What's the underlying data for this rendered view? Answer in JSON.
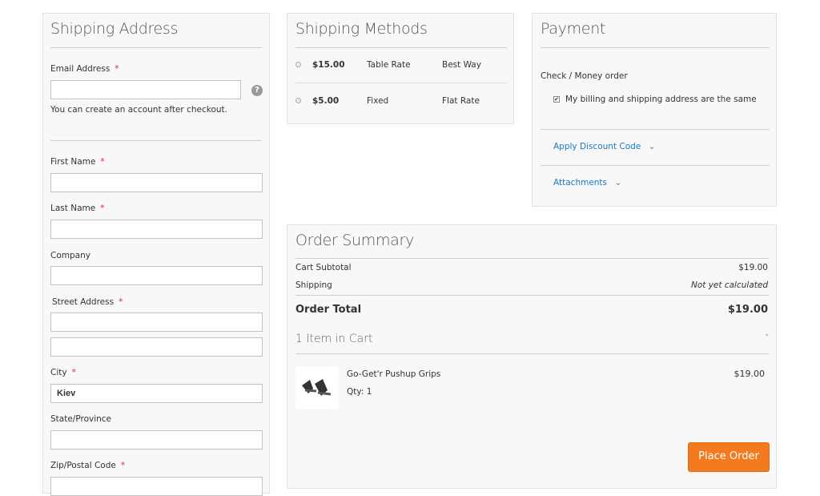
{
  "shipping_address": {
    "title": "Shipping Address",
    "email_label": "Email Address",
    "email_value": "",
    "email_note": "You can create an account after checkout.",
    "first_name_label": "First Name",
    "first_name_value": "",
    "last_name_label": "Last Name",
    "last_name_value": "",
    "company_label": "Company",
    "company_value": "",
    "street_label": "Street Address",
    "street1_value": "",
    "street2_value": "",
    "city_label": "City",
    "city_value": "Kiev",
    "state_label": "State/Province",
    "state_value": "",
    "zip_label": "Zip/Postal Code",
    "zip_value": "",
    "required_mark": "*",
    "help_icon": "?"
  },
  "shipping_methods": {
    "title": "Shipping Methods",
    "methods": [
      {
        "price": "$15.00",
        "method": "Table Rate",
        "carrier": "Best Way"
      },
      {
        "price": "$5.00",
        "method": "Fixed",
        "carrier": "Flat Rate"
      }
    ]
  },
  "payment": {
    "title": "Payment",
    "method": "Check / Money order",
    "billing_same_label": "My billing and shipping address are the same",
    "billing_same_checked": true,
    "discount_label": "Apply Discount Code",
    "attachments_label": "Attachments"
  },
  "order_summary": {
    "title": "Order Summary",
    "subtotal_label": "Cart Subtotal",
    "subtotal_value": "$19.00",
    "shipping_label": "Shipping",
    "shipping_value": "Not yet calculated",
    "total_label": "Order Total",
    "total_value": "$19.00",
    "items_label": "1 Item in Cart",
    "item": {
      "name": "Go-Get'r Pushup Grips",
      "qty": "Qty: 1",
      "price": "$19.00"
    },
    "place_order_label": "Place Order"
  },
  "colors": {
    "accent": "#f47a20",
    "link": "#1979c3",
    "required": "#e02b27"
  }
}
